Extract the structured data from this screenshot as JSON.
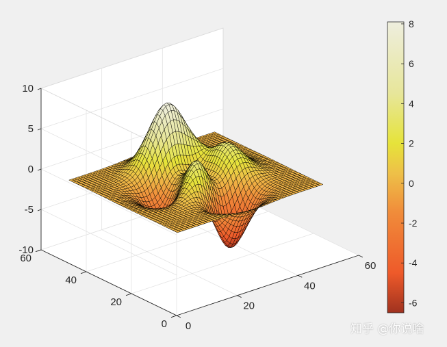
{
  "chart_data": {
    "type": "surface",
    "function": "peaks",
    "grid": {
      "x_start": 1,
      "x_end": 49,
      "y_start": 1,
      "y_end": 49,
      "n": 49
    },
    "xlim": [
      0,
      60
    ],
    "ylim": [
      0,
      60
    ],
    "zlim": [
      -10,
      10
    ],
    "x_ticks": [
      "0",
      "20",
      "40",
      "60"
    ],
    "y_ticks": [
      "0",
      "20",
      "40",
      "60"
    ],
    "z_ticks": [
      "-10",
      "-5",
      "0",
      "5",
      "10"
    ],
    "colorbar": {
      "range": [
        -6.5,
        8.1
      ],
      "ticks": [
        "8",
        "6",
        "4",
        "2",
        "0",
        "-2",
        "-4",
        "-6"
      ],
      "colormap": "autumn-hot",
      "stops": [
        {
          "value": -6.5,
          "color": "#a0321f"
        },
        {
          "value": -4.5,
          "color": "#ee5a2a"
        },
        {
          "value": -1.5,
          "color": "#f08b3a"
        },
        {
          "value": 0.5,
          "color": "#eec048"
        },
        {
          "value": 2.0,
          "color": "#e6e33a"
        },
        {
          "value": 4.5,
          "color": "#e7e69a"
        },
        {
          "value": 8.1,
          "color": "#eeeede"
        }
      ]
    },
    "grid_lines": true,
    "xlabel": "",
    "ylabel": "",
    "zlabel": "",
    "title": ""
  },
  "watermark": "知乎 @你说啥"
}
